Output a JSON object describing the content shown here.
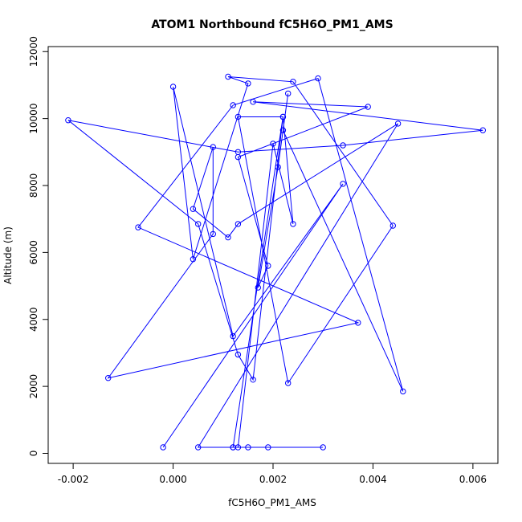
{
  "chart_data": {
    "type": "line",
    "title": "ATOM1 Northbound fC5H6O_PM1_AMS",
    "xlabel": "fC5H6O_PM1_AMS",
    "ylabel": "Altitude (m)",
    "xlim": [
      -0.0025,
      0.0065
    ],
    "ylim": [
      -300,
      12150
    ],
    "xticks": [
      -0.002,
      0.0,
      0.002,
      0.004,
      0.006
    ],
    "xtick_labels": [
      "-0.002",
      "0.000",
      "0.002",
      "0.004",
      "0.006"
    ],
    "yticks": [
      0,
      2000,
      4000,
      6000,
      8000,
      10000,
      12000
    ],
    "ytick_labels": [
      "0",
      "2000",
      "4000",
      "6000",
      "8000",
      "10000",
      "12000"
    ],
    "series_color": "#0000ff",
    "marker": "open-circle",
    "points": [
      {
        "x": 0.0015,
        "y": 180
      },
      {
        "x": 0.0019,
        "y": 180
      },
      {
        "x": 0.003,
        "y": 180
      },
      {
        "x": 0.0012,
        "y": 180
      },
      {
        "x": 0.0022,
        "y": 10050
      },
      {
        "x": 0.0016,
        "y": 2200
      },
      {
        "x": 0.0013,
        "y": 2950
      },
      {
        "x": 0.0005,
        "y": 6850
      },
      {
        "x": -0.0021,
        "y": 9950
      },
      {
        "x": 0.0013,
        "y": 9000
      },
      {
        "x": 0.0034,
        "y": 9200
      },
      {
        "x": 0.0062,
        "y": 9650
      },
      {
        "x": 0.0016,
        "y": 10500
      },
      {
        "x": 0.0039,
        "y": 10350
      },
      {
        "x": 0.0013,
        "y": 8850
      },
      {
        "x": 0.0019,
        "y": 5600
      },
      {
        "x": 0.0017,
        "y": 4950
      },
      {
        "x": 0.0021,
        "y": 8550
      },
      {
        "x": 0.0023,
        "y": 10750
      },
      {
        "x": 0.0022,
        "y": 9650
      },
      {
        "x": 0.0046,
        "y": 1850
      },
      {
        "x": 0.0029,
        "y": 11200
      },
      {
        "x": 0.0012,
        "y": 10400
      },
      {
        "x": -0.0007,
        "y": 6750
      },
      {
        "x": 0.0037,
        "y": 3900
      },
      {
        "x": -0.0013,
        "y": 2250
      },
      {
        "x": 0.0008,
        "y": 6550
      },
      {
        "x": 0.0008,
        "y": 9150
      },
      {
        "x": 0.0004,
        "y": 7300
      },
      {
        "x": 0.0011,
        "y": 6450
      },
      {
        "x": 0.0013,
        "y": 6850
      },
      {
        "x": 0.0045,
        "y": 9850
      },
      {
        "x": 0.0005,
        "y": 180
      },
      {
        "x": 0.0012,
        "y": 180
      },
      {
        "x": 0.0013,
        "y": 180
      },
      {
        "x": 0.002,
        "y": 9250
      },
      {
        "x": 0.0024,
        "y": 6850
      },
      {
        "x": 0.0022,
        "y": 10050
      },
      {
        "x": 0.0013,
        "y": 10050
      },
      {
        "x": 0.0023,
        "y": 2100
      },
      {
        "x": 0.0044,
        "y": 6800
      },
      {
        "x": 0.0024,
        "y": 11100
      },
      {
        "x": 0.0011,
        "y": 11250
      },
      {
        "x": 0.0015,
        "y": 11050
      },
      {
        "x": 0.0004,
        "y": 5800
      },
      {
        "x": 0.0,
        "y": 10950
      },
      {
        "x": 0.0012,
        "y": 3500
      },
      {
        "x": 0.0034,
        "y": 8050
      },
      {
        "x": -0.0002,
        "y": 180
      }
    ]
  }
}
